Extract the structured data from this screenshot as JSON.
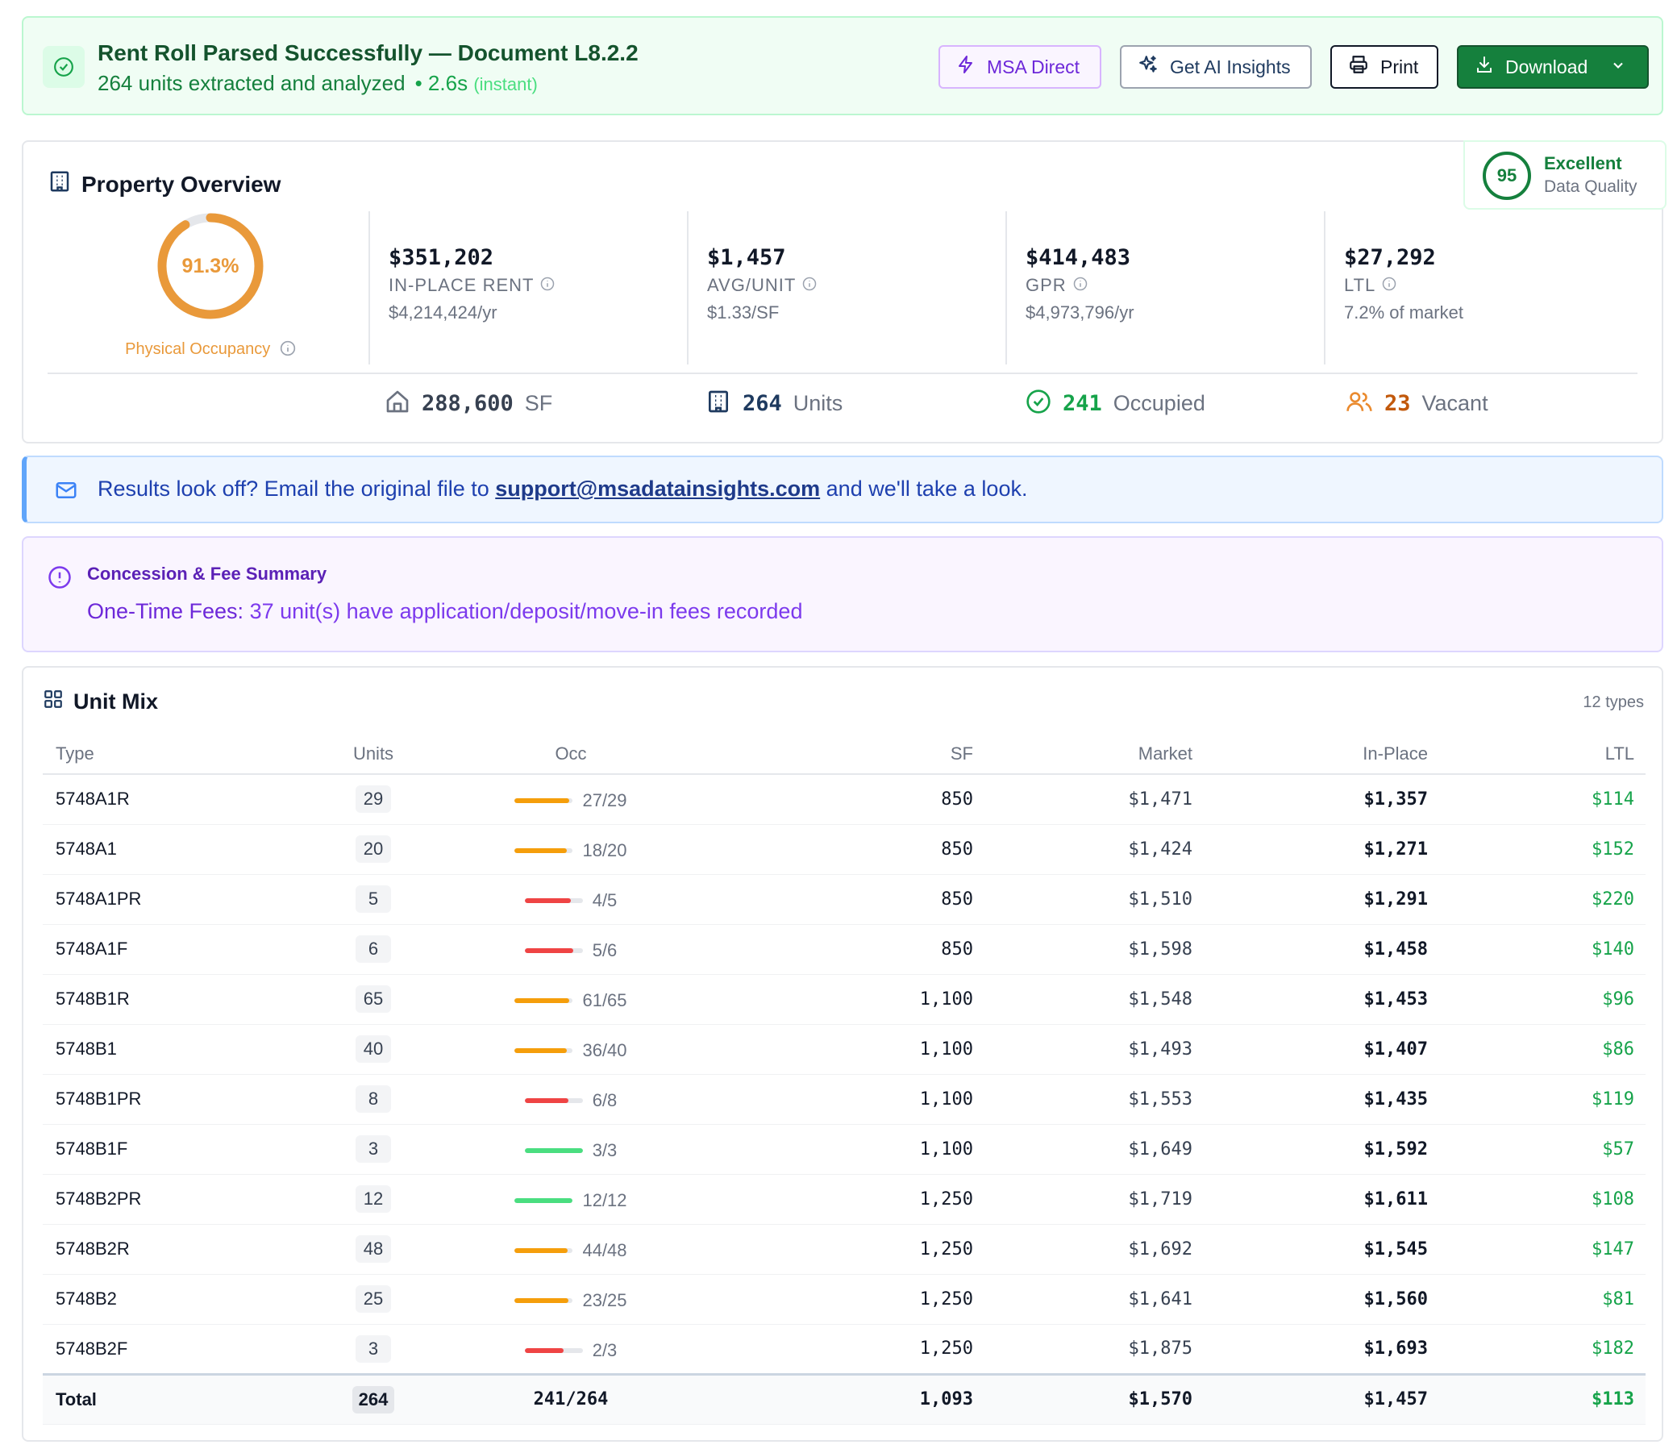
{
  "banner": {
    "title": "Rent Roll Parsed Successfully — Document L8.2.2",
    "subtitle": "264 units extracted and analyzed",
    "time": "• 2.6s",
    "time_note": "(instant)",
    "buttons": {
      "msa": "MSA Direct",
      "ai": "Get AI Insights",
      "print": "Print",
      "download": "Download"
    }
  },
  "overview": {
    "title": "Property Overview",
    "quality": {
      "score": "95",
      "label": "Excellent",
      "sub": "Data Quality"
    },
    "occupancy": {
      "value": "91.3%",
      "fraction": 0.913,
      "label": "Physical Occupancy"
    },
    "metrics": [
      {
        "value": "$351,202",
        "label": "IN-PLACE RENT",
        "sub": "$4,214,424/yr"
      },
      {
        "value": "$1,457",
        "label": "AVG/UNIT",
        "sub": "$1.33/SF"
      },
      {
        "value": "$414,483",
        "label": "GPR",
        "sub": "$4,973,796/yr"
      },
      {
        "value": "$27,292",
        "label": "LTL",
        "sub": "7.2% of market"
      }
    ],
    "stats": {
      "sf": {
        "num": "288,600",
        "label": "SF"
      },
      "units": {
        "num": "264",
        "label": "Units"
      },
      "occupied": {
        "num": "241",
        "label": "Occupied"
      },
      "vacant": {
        "num": "23",
        "label": "Vacant"
      }
    },
    "colors": {
      "occupancy": "#e9993a",
      "ok": "#16a34a",
      "warn": "#c2590c"
    }
  },
  "notice": {
    "before": "Results look off? Email the original file to ",
    "email": "support@msadatainsights.com",
    "after": " and we'll take a look."
  },
  "concession": {
    "title": "Concession & Fee Summary",
    "label": "One-Time Fees:",
    "text": " 37 unit(s) have application/deposit/move-in fees recorded"
  },
  "unit_mix": {
    "title": "Unit Mix",
    "types_count": "12 types",
    "headers": {
      "type": "Type",
      "units": "Units",
      "occ": "Occ",
      "sf": "SF",
      "market": "Market",
      "inplace": "In-Place",
      "ltl": "LTL"
    },
    "rows": [
      {
        "type": "5748A1R",
        "units": "29",
        "occupied": 27,
        "total": 29,
        "occ": "27/29",
        "sf": "850",
        "market": "$1,471",
        "inplace": "$1,357",
        "ltl": "$114"
      },
      {
        "type": "5748A1",
        "units": "20",
        "occupied": 18,
        "total": 20,
        "occ": "18/20",
        "sf": "850",
        "market": "$1,424",
        "inplace": "$1,271",
        "ltl": "$152"
      },
      {
        "type": "5748A1PR",
        "units": "5",
        "occupied": 4,
        "total": 5,
        "occ": "4/5",
        "sf": "850",
        "market": "$1,510",
        "inplace": "$1,291",
        "ltl": "$220"
      },
      {
        "type": "5748A1F",
        "units": "6",
        "occupied": 5,
        "total": 6,
        "occ": "5/6",
        "sf": "850",
        "market": "$1,598",
        "inplace": "$1,458",
        "ltl": "$140"
      },
      {
        "type": "5748B1R",
        "units": "65",
        "occupied": 61,
        "total": 65,
        "occ": "61/65",
        "sf": "1,100",
        "market": "$1,548",
        "inplace": "$1,453",
        "ltl": "$96"
      },
      {
        "type": "5748B1",
        "units": "40",
        "occupied": 36,
        "total": 40,
        "occ": "36/40",
        "sf": "1,100",
        "market": "$1,493",
        "inplace": "$1,407",
        "ltl": "$86"
      },
      {
        "type": "5748B1PR",
        "units": "8",
        "occupied": 6,
        "total": 8,
        "occ": "6/8",
        "sf": "1,100",
        "market": "$1,553",
        "inplace": "$1,435",
        "ltl": "$119"
      },
      {
        "type": "5748B1F",
        "units": "3",
        "occupied": 3,
        "total": 3,
        "occ": "3/3",
        "sf": "1,100",
        "market": "$1,649",
        "inplace": "$1,592",
        "ltl": "$57"
      },
      {
        "type": "5748B2PR",
        "units": "12",
        "occupied": 12,
        "total": 12,
        "occ": "12/12",
        "sf": "1,250",
        "market": "$1,719",
        "inplace": "$1,611",
        "ltl": "$108"
      },
      {
        "type": "5748B2R",
        "units": "48",
        "occupied": 44,
        "total": 48,
        "occ": "44/48",
        "sf": "1,250",
        "market": "$1,692",
        "inplace": "$1,545",
        "ltl": "$147"
      },
      {
        "type": "5748B2",
        "units": "25",
        "occupied": 23,
        "total": 25,
        "occ": "23/25",
        "sf": "1,250",
        "market": "$1,641",
        "inplace": "$1,560",
        "ltl": "$81"
      },
      {
        "type": "5748B2F",
        "units": "3",
        "occupied": 2,
        "total": 3,
        "occ": "2/3",
        "sf": "1,250",
        "market": "$1,875",
        "inplace": "$1,693",
        "ltl": "$182"
      }
    ],
    "total": {
      "type": "Total",
      "units": "264",
      "occ": "241/264",
      "sf": "1,093",
      "market": "$1,570",
      "inplace": "$1,457",
      "ltl": "$113"
    },
    "bar_colors": {
      "full": "#4ade80",
      "high": "#f59e0b",
      "low": "#ef4444"
    }
  }
}
